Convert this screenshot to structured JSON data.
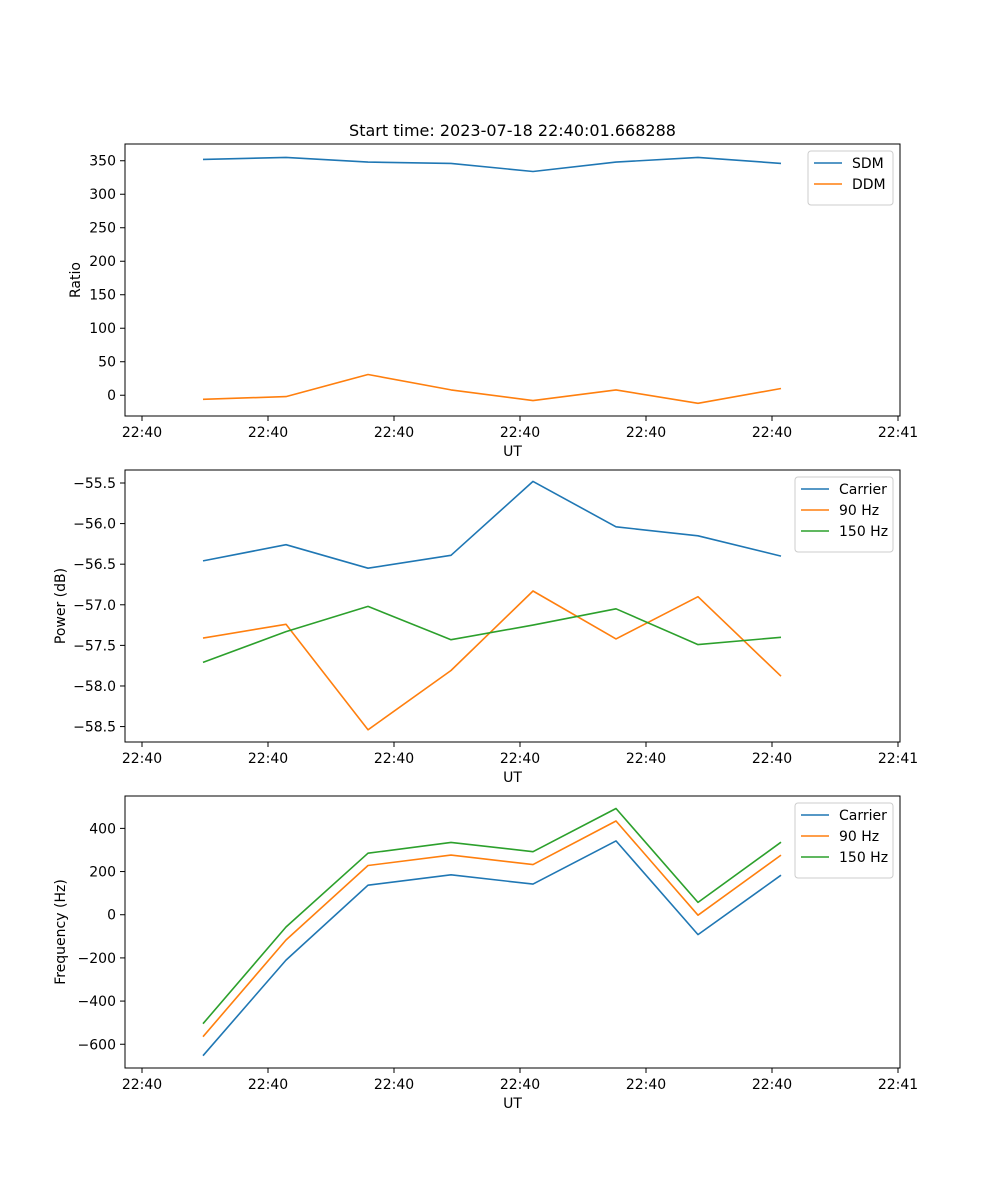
{
  "chart_data": [
    {
      "type": "line",
      "title": "Start time: 2023-07-18 22:40:01.668288",
      "xlabel": "UT",
      "ylabel": "Ratio",
      "x_tick_labels": [
        "22:40",
        "22:40",
        "22:40",
        "22:40",
        "22:40",
        "22:40",
        "22:41"
      ],
      "y_ticks": [
        0,
        50,
        100,
        150,
        200,
        250,
        300,
        350
      ],
      "ylim": [
        -31,
        375
      ],
      "legend_position": "top-right",
      "series": [
        {
          "name": "SDM",
          "color": "#1f77b4",
          "values": [
            352,
            355,
            348,
            346,
            334,
            348,
            355,
            346
          ]
        },
        {
          "name": "DDM",
          "color": "#ff7f0e",
          "values": [
            -6,
            -2,
            31,
            8,
            -8,
            8,
            -12,
            10
          ]
        }
      ]
    },
    {
      "type": "line",
      "title": "",
      "xlabel": "UT",
      "ylabel": "Power (dB)",
      "x_tick_labels": [
        "22:40",
        "22:40",
        "22:40",
        "22:40",
        "22:40",
        "22:40",
        "22:41"
      ],
      "y_ticks": [
        -58.5,
        -58.0,
        -57.5,
        -57.0,
        -56.5,
        -56.0,
        -55.5
      ],
      "y_tick_labels": [
        "−58.5",
        "−58.0",
        "−57.5",
        "−57.0",
        "−56.5",
        "−56.0",
        "−55.5"
      ],
      "ylim": [
        -58.69,
        -55.34
      ],
      "legend_position": "top-right",
      "series": [
        {
          "name": "Carrier",
          "color": "#1f77b4",
          "values": [
            -56.46,
            -56.26,
            -56.55,
            -56.39,
            -55.48,
            -56.04,
            -56.15,
            -56.4
          ]
        },
        {
          "name": "90 Hz",
          "color": "#ff7f0e",
          "values": [
            -57.41,
            -57.24,
            -58.54,
            -57.81,
            -56.83,
            -57.42,
            -56.9,
            -57.88
          ]
        },
        {
          "name": "150 Hz",
          "color": "#2ca02c",
          "values": [
            -57.71,
            -57.33,
            -57.02,
            -57.43,
            -57.25,
            -57.05,
            -57.49,
            -57.4
          ]
        }
      ]
    },
    {
      "type": "line",
      "title": "",
      "xlabel": "UT",
      "ylabel": "Frequency (Hz)",
      "x_tick_labels": [
        "22:40",
        "22:40",
        "22:40",
        "22:40",
        "22:40",
        "22:40",
        "22:41"
      ],
      "y_ticks": [
        -600,
        -400,
        -200,
        0,
        200,
        400
      ],
      "y_tick_labels": [
        "−600",
        "−400",
        "−200",
        "0",
        "200",
        "400"
      ],
      "ylim": [
        -710,
        550
      ],
      "legend_position": "top-right",
      "series": [
        {
          "name": "Carrier",
          "color": "#1f77b4",
          "values": [
            -653,
            -210,
            137,
            185,
            142,
            342,
            -92,
            183
          ]
        },
        {
          "name": "90 Hz",
          "color": "#ff7f0e",
          "values": [
            -565,
            -117,
            228,
            276,
            232,
            434,
            -2,
            276
          ]
        },
        {
          "name": "150 Hz",
          "color": "#2ca02c",
          "values": [
            -505,
            -57,
            285,
            335,
            292,
            492,
            57,
            336
          ]
        }
      ]
    }
  ]
}
